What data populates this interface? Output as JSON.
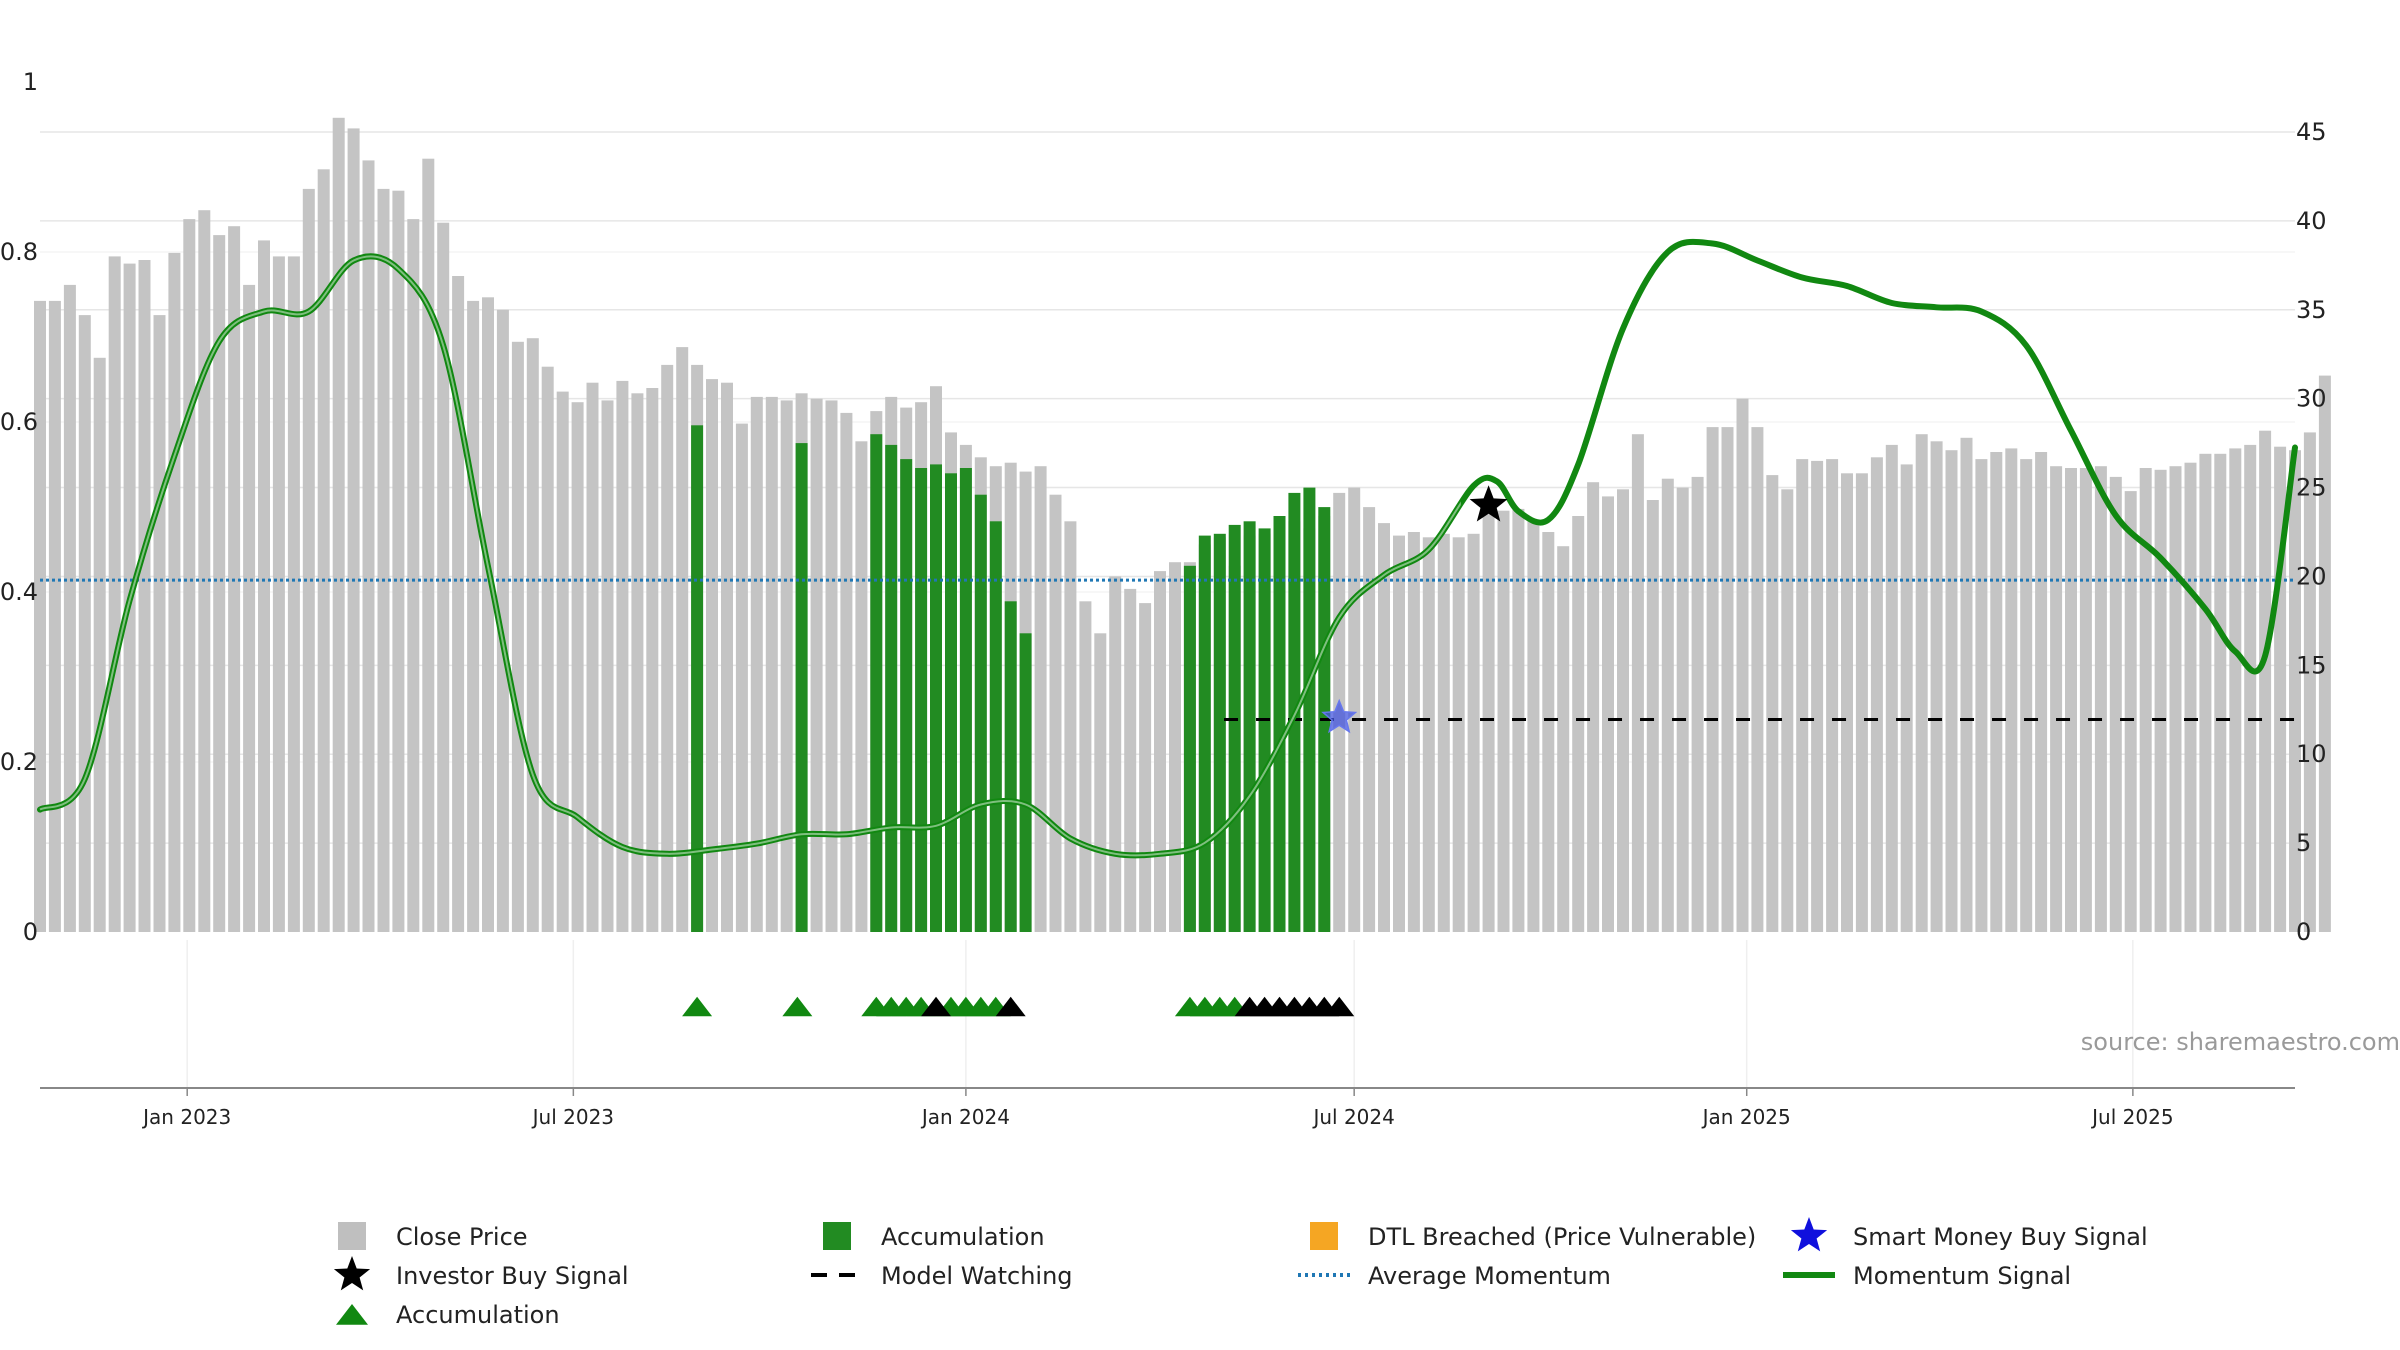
{
  "chart_data": {
    "type": "bar",
    "source_note": "source: sharemaestro.com",
    "left_axis": {
      "ylim": [
        0,
        1
      ],
      "ticks": [
        0,
        0.2,
        0.4,
        0.6,
        0.8,
        1
      ],
      "tick_labels": [
        "0",
        "0.2",
        "0.4",
        "0.6",
        "0.8",
        "1"
      ]
    },
    "right_axis": {
      "ylim": [
        0,
        48
      ],
      "ticks": [
        0,
        5,
        10,
        15,
        20,
        25,
        30,
        35,
        40,
        45
      ],
      "tick_labels": [
        "0",
        "5",
        "10",
        "15",
        "20",
        "25",
        "30",
        "35",
        "40",
        "45"
      ]
    },
    "x_axis": {
      "start": "2022-10-24",
      "end": "2025-09-15",
      "ticks": [
        "2023-01-01",
        "2023-07-01",
        "2024-01-01",
        "2024-07-01",
        "2025-01-01",
        "2025-07-01"
      ],
      "tick_labels": [
        "Jan 2023",
        "Jul 2023",
        "Jan 2024",
        "Jul 2024",
        "Jan 2025",
        "Jul 2025"
      ]
    },
    "grid": true,
    "bar_start": "2022-10-24",
    "bar_interval_days": 7,
    "close_price": [
      35.5,
      35.5,
      36.4,
      34.7,
      32.3,
      38.0,
      37.6,
      37.8,
      34.7,
      38.2,
      40.1,
      40.6,
      39.2,
      39.7,
      36.4,
      38.9,
      38.0,
      38.0,
      41.8,
      42.9,
      45.8,
      45.2,
      43.4,
      41.8,
      41.7,
      40.1,
      43.5,
      39.9,
      36.9,
      35.5,
      35.7,
      35.0,
      33.2,
      33.4,
      31.8,
      30.4,
      29.8,
      30.9,
      29.9,
      31.0,
      30.3,
      30.6,
      31.9,
      32.9,
      31.9,
      31.1,
      30.9,
      28.6,
      30.1,
      30.1,
      29.9,
      30.3,
      30.0,
      29.9,
      29.2,
      27.6,
      29.3,
      30.1,
      29.5,
      29.8,
      30.7,
      28.1,
      27.4,
      26.7,
      26.2,
      26.4,
      25.9,
      26.2,
      24.6,
      23.1,
      18.6,
      16.8,
      20.0,
      19.3,
      18.5,
      20.3,
      20.8,
      20.8,
      21.8,
      22.2,
      20.6,
      22.3,
      22.4,
      22.9,
      23.1,
      22.7,
      23.4,
      24.7,
      25.0,
      23.9,
      23.0,
      22.3,
      22.5,
      22.2,
      22.4,
      22.2,
      22.4,
      23.5,
      23.7,
      23.8,
      23.2,
      22.5,
      21.7,
      23.4,
      25.3,
      24.5,
      24.9,
      28.0,
      24.3,
      25.5,
      25.0,
      25.6,
      28.4,
      28.4,
      30.0,
      28.4,
      25.7,
      24.9,
      26.6,
      26.5,
      26.6,
      25.8,
      25.8,
      26.7,
      27.4,
      26.3,
      28.0,
      27.6,
      27.1,
      27.8,
      26.6,
      27.0,
      27.2,
      26.6,
      27.0,
      26.2,
      26.1,
      26.1,
      26.2,
      25.6,
      24.8,
      26.1,
      26.0,
      26.2,
      26.4,
      26.9,
      26.9,
      27.2,
      27.4,
      28.2,
      27.3,
      27.1,
      28.1,
      31.3
    ],
    "accumulation_bars": [
      {
        "date": "2023-08-28",
        "value": 28.5
      },
      {
        "date": "2023-10-16",
        "value": 27.5
      },
      {
        "date": "2023-11-20",
        "value": 28.0
      },
      {
        "date": "2023-11-27",
        "value": 27.4
      },
      {
        "date": "2023-12-04",
        "value": 26.6
      },
      {
        "date": "2023-12-11",
        "value": 26.1
      },
      {
        "date": "2023-12-18",
        "value": 26.3
      },
      {
        "date": "2023-12-25",
        "value": 25.8
      },
      {
        "date": "2024-01-01",
        "value": 26.1
      },
      {
        "date": "2024-01-08",
        "value": 24.6
      },
      {
        "date": "2024-01-15",
        "value": 23.1
      },
      {
        "date": "2024-01-22",
        "value": 18.6
      },
      {
        "date": "2024-01-29",
        "value": 16.8
      },
      {
        "date": "2024-04-15",
        "value": 20.6
      },
      {
        "date": "2024-04-22",
        "value": 22.3
      },
      {
        "date": "2024-04-29",
        "value": 22.4
      },
      {
        "date": "2024-05-06",
        "value": 22.9
      },
      {
        "date": "2024-05-13",
        "value": 23.1
      },
      {
        "date": "2024-05-20",
        "value": 22.7
      },
      {
        "date": "2024-05-27",
        "value": 23.4
      },
      {
        "date": "2024-06-03",
        "value": 24.7
      },
      {
        "date": "2024-06-10",
        "value": 25.0
      },
      {
        "date": "2024-06-17",
        "value": 23.9
      }
    ],
    "average_momentum": 0.414,
    "momentum_signal": {
      "x": [
        "2022-10-24",
        "2022-11-14",
        "2022-12-05",
        "2022-12-26",
        "2023-01-16",
        "2023-02-06",
        "2023-02-27",
        "2023-03-20",
        "2023-04-10",
        "2023-05-01",
        "2023-05-22",
        "2023-06-12",
        "2023-07-03",
        "2023-07-24",
        "2023-08-14",
        "2023-09-04",
        "2023-09-25",
        "2023-10-16",
        "2023-11-06",
        "2023-11-27",
        "2023-12-18",
        "2024-01-08",
        "2024-01-29",
        "2024-02-19",
        "2024-03-11",
        "2024-04-01",
        "2024-04-22",
        "2024-05-13",
        "2024-06-03",
        "2024-06-24",
        "2024-07-15",
        "2024-08-05",
        "2024-08-26",
        "2024-09-06",
        "2024-09-16",
        "2024-09-30",
        "2024-10-14",
        "2024-11-04",
        "2024-11-25",
        "2024-12-16",
        "2025-01-06",
        "2025-01-27",
        "2025-02-17",
        "2025-03-10",
        "2025-03-31",
        "2025-04-21",
        "2025-05-12",
        "2025-06-02",
        "2025-06-23",
        "2025-07-14",
        "2025-08-04",
        "2025-08-18",
        "2025-09-01",
        "2025-09-15"
      ],
      "y": [
        0.144,
        0.18,
        0.39,
        0.56,
        0.695,
        0.73,
        0.73,
        0.79,
        0.78,
        0.69,
        0.43,
        0.185,
        0.135,
        0.1,
        0.092,
        0.097,
        0.104,
        0.115,
        0.115,
        0.123,
        0.125,
        0.15,
        0.15,
        0.11,
        0.092,
        0.092,
        0.105,
        0.16,
        0.255,
        0.37,
        0.42,
        0.45,
        0.525,
        0.53,
        0.495,
        0.485,
        0.55,
        0.71,
        0.8,
        0.81,
        0.79,
        0.77,
        0.76,
        0.74,
        0.735,
        0.73,
        0.69,
        0.59,
        0.49,
        0.44,
        0.38,
        0.33,
        0.325,
        0.57
      ]
    },
    "momentum_overlay_end": "2024-08-20",
    "model_watching": {
      "start": "2024-05-01",
      "end": "2025-09-15",
      "value": 0.25
    },
    "investor_buy_signal": {
      "date": "2024-09-02",
      "value": 0.502
    },
    "smart_money_buy_signal": {
      "date": "2024-06-24",
      "value": 0.252
    },
    "event_markers": {
      "accumulation": [
        "2023-08-28",
        "2023-10-14",
        "2023-11-20",
        "2023-11-27",
        "2023-12-04",
        "2023-12-11",
        "2023-12-25",
        "2024-01-01",
        "2024-01-08",
        "2024-01-15",
        "2024-04-15",
        "2024-04-22",
        "2024-04-29",
        "2024-05-06"
      ],
      "investor_buy": [
        "2023-12-18",
        "2024-01-22",
        "2024-05-13",
        "2024-05-20",
        "2024-05-27",
        "2024-06-03",
        "2024-06-10",
        "2024-06-17",
        "2024-06-24"
      ]
    },
    "legend": [
      {
        "label": "Close Price",
        "marker": "square",
        "color": "#bfbfbf"
      },
      {
        "label": "Accumulation",
        "marker": "square",
        "color": "#228b22"
      },
      {
        "label": "DTL Breached (Price Vulnerable)",
        "marker": "square",
        "color": "#f5a623"
      },
      {
        "label": "Smart Money Buy Signal",
        "marker": "star",
        "color": "#1010dd"
      },
      {
        "label": "Investor Buy Signal",
        "marker": "star",
        "color": "#000000"
      },
      {
        "label": "Model Watching",
        "marker": "dash",
        "color": "#000000"
      },
      {
        "label": "Average Momentum",
        "marker": "dotted",
        "color": "#1f77b4"
      },
      {
        "label": "Momentum Signal",
        "marker": "line",
        "color": "#118811"
      },
      {
        "label": "Accumulation",
        "marker": "triangle",
        "color": "#118811"
      }
    ],
    "colors": {
      "close_price": "#c4c4c4",
      "accumulation": "#228b22",
      "momentum": "#118811",
      "average_momentum": "#1f77b4",
      "model_watching": "#000000",
      "investor_star": "#000000",
      "smart_money_star": "#4455dd",
      "grid": "#e6e6e6",
      "axis": "#888888"
    }
  }
}
